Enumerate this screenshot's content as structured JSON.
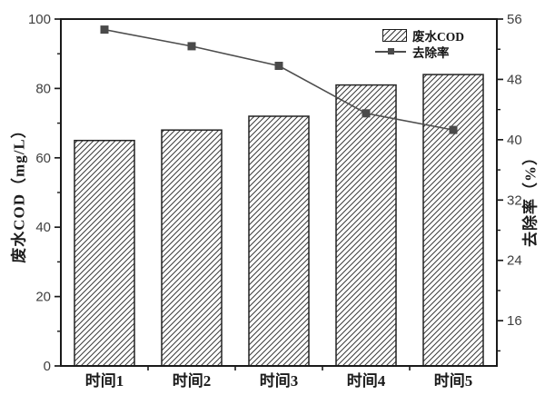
{
  "chart_data": {
    "type": "combo",
    "title": "",
    "categories": [
      "时间1",
      "时间2",
      "时间3",
      "时间4",
      "时间5"
    ],
    "series": [
      {
        "name": "废水COD",
        "type": "bar",
        "axis": "left",
        "values": [
          65,
          68,
          72,
          81,
          84
        ]
      },
      {
        "name": "去除率",
        "type": "line",
        "axis": "right",
        "values": [
          54.6,
          52.4,
          49.8,
          43.5,
          41.3
        ]
      }
    ],
    "left_axis": {
      "label": "废水COD（mg/L）",
      "min": 0,
      "max": 100,
      "ticks": [
        0,
        20,
        40,
        60,
        80,
        100
      ],
      "minor_ticks": [
        10,
        30,
        50,
        70,
        90
      ]
    },
    "right_axis": {
      "label": "去除率（%）",
      "min": 10,
      "max": 56,
      "ticks": [
        16,
        24,
        32,
        40,
        48,
        56
      ],
      "minor_ticks": [
        12,
        20,
        28,
        36,
        44,
        52
      ]
    },
    "xlabel": "",
    "ylabel_left": "废水COD（mg/L）",
    "ylabel_right": "去除率（%）",
    "legend_position": "top-right",
    "grid": false
  },
  "colors": {
    "background": "#ffffff",
    "axis": "#1a1a1a",
    "bar_edge": "#222222",
    "bar_hatch": "#3a3a3a",
    "bar_fill": "#ffffff",
    "line": "#4d4d4d",
    "marker": "#4a4a4a",
    "tick_number_text": "#3f3f3f",
    "category_text": "#1a1a1a"
  }
}
